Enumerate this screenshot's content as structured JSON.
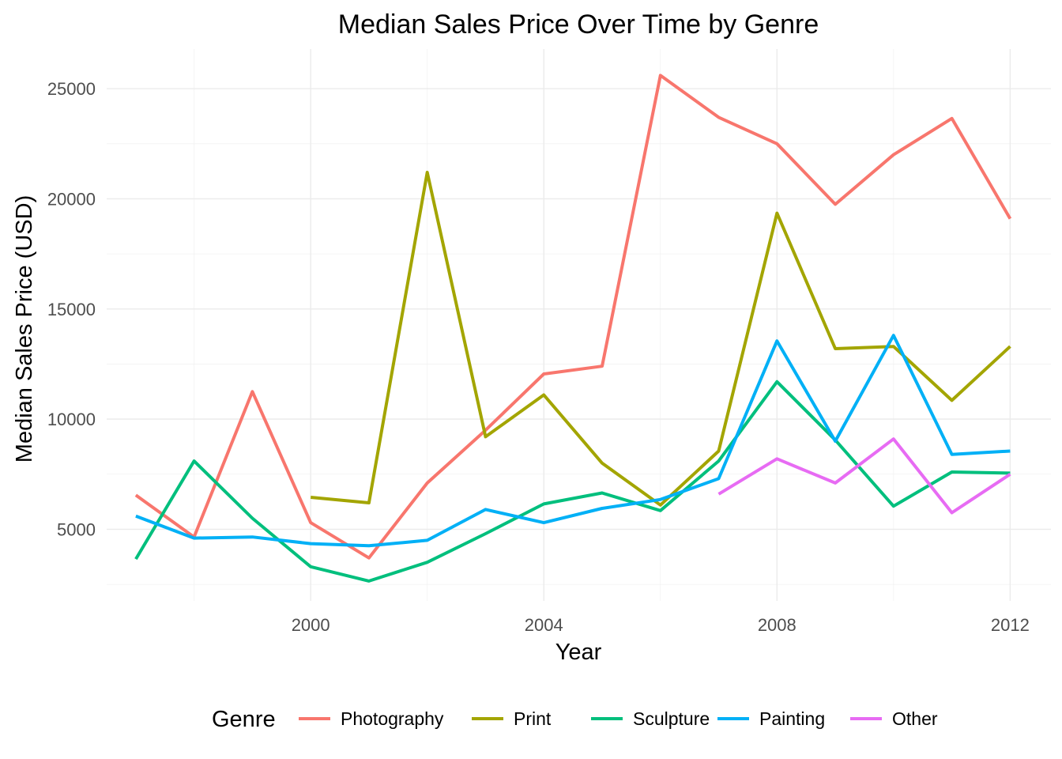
{
  "chart_data": {
    "type": "line",
    "title": "Median Sales Price Over Time by Genre",
    "xlabel": "Year",
    "ylabel": "Median Sales Price (USD)",
    "xlim": [
      1996.5,
      2012.7
    ],
    "ylim": [
      1750,
      26800
    ],
    "x_ticks": [
      2000,
      2004,
      2008,
      2012
    ],
    "y_ticks": [
      5000,
      10000,
      15000,
      20000,
      25000
    ],
    "grid": true,
    "legend_position": "bottom",
    "legend_title": "Genre",
    "series": [
      {
        "name": "Photography",
        "color": "#F8766D",
        "points": [
          [
            1997,
            6550
          ],
          [
            1998,
            4650
          ],
          [
            1999,
            11250
          ],
          [
            2000,
            5300
          ],
          [
            2001,
            3700
          ],
          [
            2002,
            7100
          ],
          [
            2003,
            9500
          ],
          [
            2004,
            12050
          ],
          [
            2005,
            12400
          ],
          [
            2006,
            25600
          ],
          [
            2007,
            23700
          ],
          [
            2008,
            22500
          ],
          [
            2009,
            19750
          ],
          [
            2010,
            22000
          ],
          [
            2011,
            23650
          ],
          [
            2012,
            19100
          ]
        ]
      },
      {
        "name": "Print",
        "color": "#A3A500",
        "points": [
          [
            2000,
            6450
          ],
          [
            2001,
            6200
          ],
          [
            2002,
            21200
          ],
          [
            2003,
            9200
          ],
          [
            2004,
            11100
          ],
          [
            2005,
            8000
          ],
          [
            2006,
            6100
          ],
          [
            2007,
            8550
          ],
          [
            2008,
            19350
          ],
          [
            2009,
            13200
          ],
          [
            2010,
            13300
          ],
          [
            2011,
            10850
          ],
          [
            2012,
            13300
          ]
        ]
      },
      {
        "name": "Sculpture",
        "color": "#00BF7D",
        "points": [
          [
            1997,
            3650
          ],
          [
            1998,
            8100
          ],
          [
            1999,
            5500
          ],
          [
            2000,
            3300
          ],
          [
            2001,
            2650
          ],
          [
            2002,
            3500
          ],
          [
            2003,
            4800
          ],
          [
            2004,
            6150
          ],
          [
            2005,
            6650
          ],
          [
            2006,
            5850
          ],
          [
            2007,
            8100
          ],
          [
            2008,
            11700
          ],
          [
            2009,
            9050
          ],
          [
            2010,
            6050
          ],
          [
            2011,
            7600
          ],
          [
            2012,
            7550
          ]
        ]
      },
      {
        "name": "Painting",
        "color": "#00B0F6",
        "points": [
          [
            1997,
            5600
          ],
          [
            1998,
            4600
          ],
          [
            1999,
            4650
          ],
          [
            2000,
            4350
          ],
          [
            2001,
            4250
          ],
          [
            2002,
            4500
          ],
          [
            2003,
            5900
          ],
          [
            2004,
            5300
          ],
          [
            2005,
            5950
          ],
          [
            2006,
            6350
          ],
          [
            2007,
            7300
          ],
          [
            2008,
            13550
          ],
          [
            2009,
            9000
          ],
          [
            2010,
            13800
          ],
          [
            2011,
            8400
          ],
          [
            2012,
            8550
          ]
        ]
      },
      {
        "name": "Other",
        "color": "#E76BF3",
        "points": [
          [
            2007,
            6600
          ],
          [
            2008,
            8200
          ],
          [
            2009,
            7100
          ],
          [
            2010,
            9100
          ],
          [
            2011,
            5750
          ],
          [
            2012,
            7500
          ]
        ]
      }
    ]
  }
}
